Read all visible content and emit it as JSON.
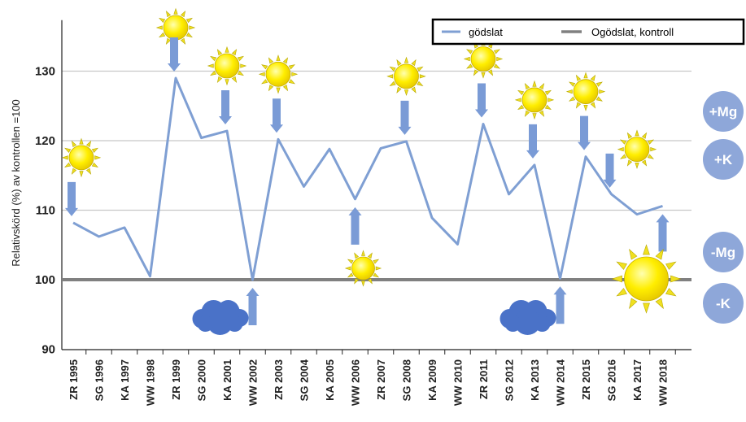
{
  "chart_data": {
    "type": "line",
    "ylabel": "Relativskörd (%) av kontrollen =100",
    "ylim": [
      90,
      135
    ],
    "yticks": [
      90,
      100,
      110,
      120,
      130
    ],
    "categories": [
      "ZR 1995",
      "SG 1996",
      "KA 1997",
      "WW 1998",
      "ZR 1999",
      "SG 2000",
      "KA 2001",
      "WW 2002",
      "ZR 2003",
      "SG 2004",
      "KA 2005",
      "WW 2006",
      "ZR 2007",
      "SG 2008",
      "KA 2009",
      "WW 2010",
      "ZR 2011",
      "SG 2012",
      "KA 2013",
      "WW 2014",
      "ZR 2015",
      "SG 2016",
      "KA 2017",
      "WW 2018"
    ],
    "series": [
      {
        "name": "gödslat",
        "color": "#7f9fd3",
        "values": [
          108.2,
          106.2,
          107.5,
          100.5,
          129.0,
          120.4,
          121.4,
          100.0,
          120.2,
          113.4,
          118.8,
          111.6,
          118.9,
          119.9,
          108.9,
          105.1,
          122.4,
          112.3,
          116.5,
          100.2,
          117.7,
          112.3,
          109.4,
          110.6
        ]
      },
      {
        "name": "Ogödslat, kontroll",
        "color": "#808080",
        "values": [
          100,
          100,
          100,
          100,
          100,
          100,
          100,
          100,
          100,
          100,
          100,
          100,
          100,
          100,
          100,
          100,
          100,
          100,
          100,
          100,
          100,
          100,
          100,
          100
        ]
      }
    ],
    "grid": true,
    "legend_position": "top-right",
    "badges": [
      "+Mg",
      "+K",
      "-Mg",
      "-K"
    ],
    "weather": {
      "suns_above": [
        0,
        4,
        6,
        8,
        13,
        16,
        18,
        20,
        22
      ],
      "suns_below": [
        11
      ],
      "big_sun": 23,
      "clouds": [
        7,
        19
      ],
      "arrows_down": [
        0,
        4,
        6,
        8,
        13,
        16,
        18,
        20,
        21
      ],
      "arrows_up": [
        7,
        11,
        19,
        23
      ]
    },
    "colors": {
      "line": "#7f9fd3",
      "control": "#808080",
      "badge": "#8ea7d9",
      "arrow": "#7a9bd6",
      "sun": "#ffee00",
      "ray": "#f0e020",
      "cloud": "#4a72c8"
    }
  }
}
